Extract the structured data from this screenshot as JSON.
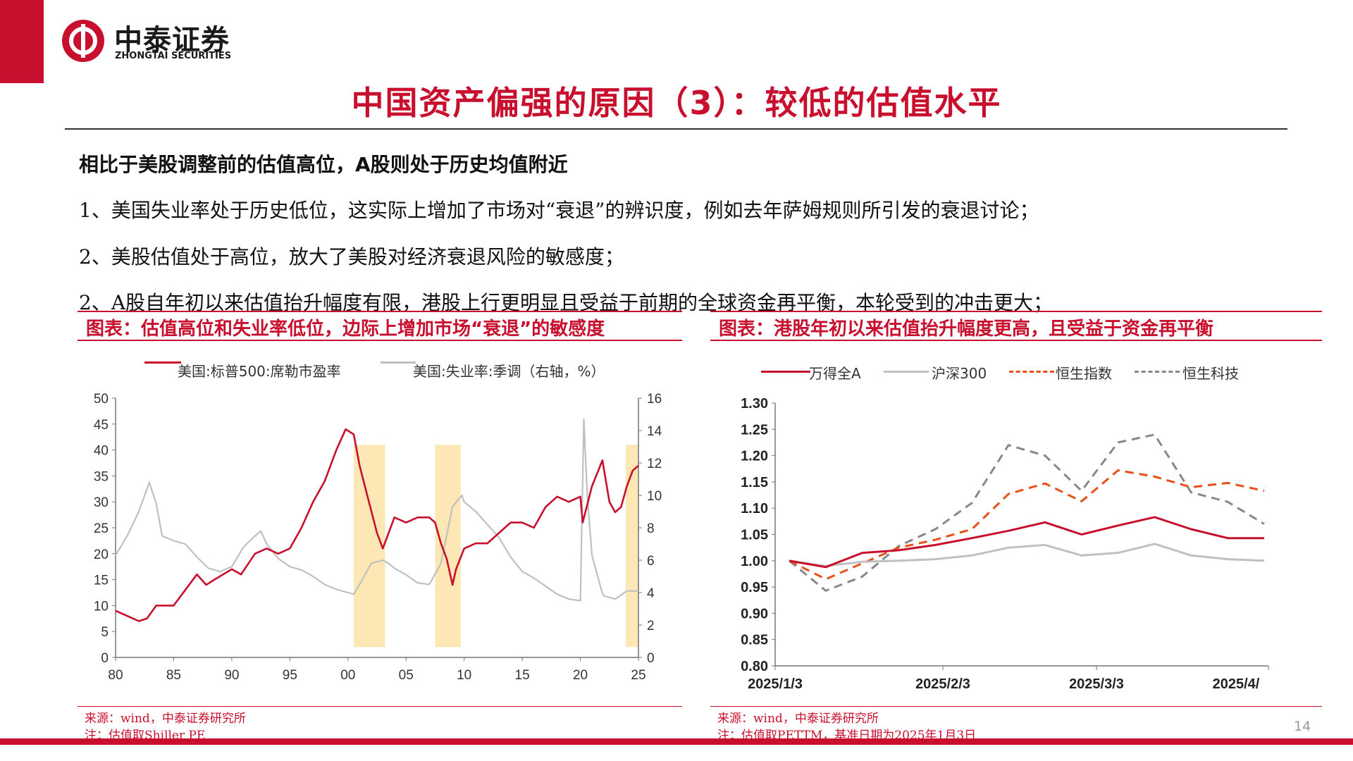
{
  "brand": {
    "name_cn": "中泰证券",
    "name_en": "ZHONGTAI SECURITIES",
    "color": "#c8102e"
  },
  "title": "中国资产偏强的原因（3）：较低的估值水平",
  "subheading": "相比于美股调整前的估值高位，A股则处于历史均值附近",
  "points": [
    "1、美国失业率处于历史低位，这实际上增加了市场对“衰退”的辨识度，例如去年萨姆规则所引发的衰退讨论；",
    "2、美股估值处于高位，放大了美股对经济衰退风险的敏感度；",
    "2、A股自年初以来估值抬升幅度有限，港股上行更明显且受益于前期的全球资金再平衡，本轮受到的冲击更大；"
  ],
  "left_panel": {
    "title": "图表：估值高位和失业率低位，边际上增加市场“衰退”的敏感度",
    "source": "来源：wind，中泰证券研究所",
    "note": "注：估值取Shiller PE"
  },
  "right_panel": {
    "title": "图表：港股年初以来估值抬升幅度更高，且受益于资金再平衡",
    "source": "来源：wind，中泰证券研究所",
    "note": "注：估值取PETTM，基准日期为2025年1月3日"
  },
  "page_number": "14",
  "chart_data": [
    {
      "type": "line",
      "title": "",
      "xlabel": "",
      "ylabel": "",
      "x_ticks": [
        "80",
        "85",
        "90",
        "95",
        "00",
        "05",
        "10",
        "15",
        "20",
        "25"
      ],
      "y_left_ticks": [
        "0",
        "5",
        "10",
        "15",
        "20",
        "25",
        "30",
        "35",
        "40",
        "45",
        "50"
      ],
      "y_right_ticks": [
        "0",
        "2",
        "4",
        "6",
        "8",
        "10",
        "12",
        "14",
        "16"
      ],
      "ylim_left": [
        0,
        50
      ],
      "ylim_right": [
        0,
        16
      ],
      "xlim": [
        1980,
        2025
      ],
      "legend_position": "top",
      "grid": false,
      "highlight_periods": [
        [
          2000.5,
          2003.2
        ],
        [
          2007.5,
          2009.7
        ],
        [
          2023.9,
          2025.0
        ]
      ],
      "highlight_color": "#fbe3a8",
      "series": [
        {
          "name": "美国:标普500:席勒市盈率",
          "axis": "left",
          "color": "#c8102e",
          "x": [
            1980,
            1981,
            1982,
            1982.7,
            1983.5,
            1985,
            1986,
            1987,
            1987.8,
            1988.5,
            1990,
            1990.8,
            1992,
            1993,
            1994,
            1995,
            1996,
            1997,
            1998,
            1999,
            1999.8,
            2000.5,
            2001,
            2001.8,
            2002.5,
            2003,
            2003.5,
            2004,
            2005,
            2006,
            2007,
            2007.5,
            2008,
            2008.5,
            2009,
            2009.3,
            2010,
            2011,
            2012,
            2013,
            2014,
            2015,
            2016,
            2017,
            2018,
            2019,
            2020,
            2020.2,
            2021,
            2021.9,
            2022.5,
            2023,
            2023.5,
            2024,
            2024.5,
            2025
          ],
          "values": [
            9,
            8,
            7,
            7.5,
            10,
            10,
            13,
            16,
            14,
            15,
            17,
            16,
            20,
            21,
            20,
            21,
            25,
            30,
            34,
            40,
            44,
            43,
            37,
            30,
            24,
            21,
            24,
            27,
            26,
            27,
            27,
            26,
            22,
            19,
            14,
            17,
            21,
            22,
            22,
            24,
            26,
            26,
            25,
            29,
            31,
            30,
            31,
            26,
            33,
            38,
            30,
            28,
            29,
            33,
            36,
            37
          ]
        },
        {
          "name": "美国:失业率:季调（右轴，%）",
          "axis": "right",
          "color": "#c0c0c0",
          "x": [
            1980,
            1981,
            1982,
            1982.9,
            1983.5,
            1984,
            1985,
            1986,
            1987,
            1988,
            1989,
            1990,
            1991,
            1992,
            1992.5,
            1993,
            1994,
            1995,
            1996,
            1997,
            1998,
            1999,
            2000,
            2000.5,
            2001,
            2002,
            2003,
            2003.5,
            2004,
            2005,
            2006,
            2007,
            2008,
            2009,
            2009.8,
            2010,
            2011,
            2012,
            2013,
            2014,
            2015,
            2016,
            2017,
            2018,
            2019,
            2020,
            2020.3,
            2020.6,
            2021,
            2021.8,
            2022,
            2023,
            2024,
            2025
          ],
          "values": [
            6.3,
            7.5,
            9,
            10.8,
            9.5,
            7.5,
            7.2,
            7,
            6.2,
            5.5,
            5.3,
            5.6,
            6.8,
            7.5,
            7.8,
            7,
            6.1,
            5.6,
            5.4,
            5,
            4.5,
            4.2,
            4,
            3.9,
            4.5,
            5.8,
            6,
            5.8,
            5.5,
            5.1,
            4.6,
            4.5,
            5.8,
            9.3,
            10,
            9.6,
            9,
            8.2,
            7.4,
            6.2,
            5.3,
            4.9,
            4.4,
            3.9,
            3.6,
            3.5,
            14.7,
            10,
            6.3,
            4.2,
            3.8,
            3.6,
            4.1,
            4.1
          ]
        }
      ]
    },
    {
      "type": "line",
      "title": "",
      "xlabel": "",
      "ylabel": "",
      "x_ticks": [
        "2025/1/3",
        "2025/2/3",
        "2025/3/3",
        "2025/4/"
      ],
      "y_ticks": [
        "0.80",
        "0.85",
        "0.90",
        "0.95",
        "1.00",
        "1.05",
        "1.10",
        "1.15",
        "1.20",
        "1.25",
        "1.30"
      ],
      "ylim": [
        0.8,
        1.3
      ],
      "legend_position": "top",
      "grid": false,
      "x": [
        "2025/1/3",
        "2025/1/10",
        "2025/1/17",
        "2025/1/24",
        "2025/1/31",
        "2025/2/7",
        "2025/2/14",
        "2025/2/21",
        "2025/2/28",
        "2025/3/7",
        "2025/3/14",
        "2025/3/21",
        "2025/3/28",
        "2025/4/3"
      ],
      "series": [
        {
          "name": "万得全A",
          "color": "#c8102e",
          "dash": "solid",
          "values": [
            1.0,
            0.988,
            1.015,
            1.02,
            1.03,
            1.043,
            1.057,
            1.073,
            1.05,
            1.067,
            1.083,
            1.06,
            1.043,
            1.043
          ]
        },
        {
          "name": "沪深300",
          "color": "#c0c0c0",
          "dash": "solid",
          "values": [
            1.0,
            0.99,
            0.998,
            1.0,
            1.003,
            1.01,
            1.025,
            1.03,
            1.01,
            1.015,
            1.032,
            1.01,
            1.003,
            1.0
          ]
        },
        {
          "name": "恒生指数",
          "color": "#e8501a",
          "dash": "dashed",
          "values": [
            1.0,
            0.965,
            0.995,
            1.025,
            1.04,
            1.06,
            1.127,
            1.147,
            1.113,
            1.172,
            1.16,
            1.14,
            1.148,
            1.133
          ]
        },
        {
          "name": "恒生科技",
          "color": "#888888",
          "dash": "dashed",
          "values": [
            1.0,
            0.943,
            0.97,
            1.028,
            1.06,
            1.11,
            1.22,
            1.2,
            1.133,
            1.225,
            1.24,
            1.13,
            1.112,
            1.07
          ]
        }
      ]
    }
  ]
}
